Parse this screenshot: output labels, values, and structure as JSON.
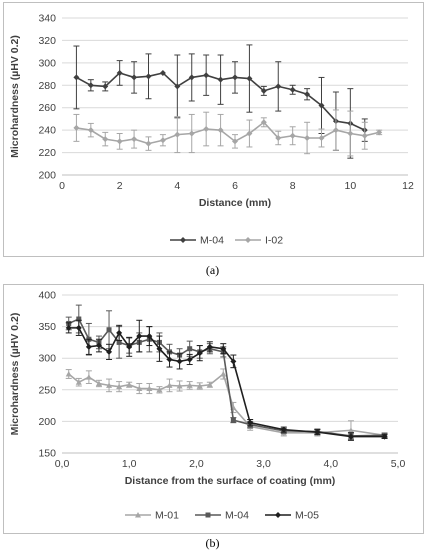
{
  "caption_a": "(a)",
  "caption_b": "(b)",
  "chart_data": [
    {
      "type": "line",
      "title": "",
      "xlabel": "Distance (mm)",
      "ylabel": "Microhardness (µHV 0.2)",
      "xlim": [
        0,
        12
      ],
      "ylim": [
        200,
        340
      ],
      "xticks": [
        "0",
        "2",
        "4",
        "6",
        "8",
        "10",
        "12"
      ],
      "yticks": [
        "200",
        "220",
        "240",
        "260",
        "280",
        "300",
        "320",
        "340"
      ],
      "grid": "horizontal",
      "legend_position": "bottom",
      "series": [
        {
          "name": "M-04",
          "color": "#404040",
          "marker": "diamond",
          "points": [
            {
              "x": 0.5,
              "y": 287,
              "err": 28
            },
            {
              "x": 1.0,
              "y": 280,
              "err": 5
            },
            {
              "x": 1.5,
              "y": 279,
              "err": 4
            },
            {
              "x": 2.0,
              "y": 291,
              "err": 11
            },
            {
              "x": 2.5,
              "y": 287,
              "err": 14
            },
            {
              "x": 3.0,
              "y": 288,
              "err": 20
            },
            {
              "x": 3.5,
              "y": 291,
              "err": 0
            },
            {
              "x": 4.0,
              "y": 279,
              "err": 28
            },
            {
              "x": 4.5,
              "y": 287,
              "err": 21
            },
            {
              "x": 5.0,
              "y": 289,
              "err": 18
            },
            {
              "x": 5.5,
              "y": 285,
              "err": 22
            },
            {
              "x": 6.0,
              "y": 287,
              "err": 14
            },
            {
              "x": 6.5,
              "y": 286,
              "err": 30
            },
            {
              "x": 7.0,
              "y": 275,
              "err": 4
            },
            {
              "x": 7.5,
              "y": 279,
              "err": 22
            },
            {
              "x": 8.0,
              "y": 276,
              "err": 4
            },
            {
              "x": 8.5,
              "y": 272,
              "err": 5
            },
            {
              "x": 9.0,
              "y": 262,
              "err": 25
            },
            {
              "x": 9.5,
              "y": 248,
              "err": 26
            },
            {
              "x": 10.0,
              "y": 246,
              "err": 31
            },
            {
              "x": 10.5,
              "y": 240,
              "err": 10
            }
          ]
        },
        {
          "name": "I-02",
          "color": "#a6a6a6",
          "marker": "diamond",
          "points": [
            {
              "x": 0.5,
              "y": 242,
              "err": 12
            },
            {
              "x": 1.0,
              "y": 240,
              "err": 6
            },
            {
              "x": 1.5,
              "y": 232,
              "err": 6
            },
            {
              "x": 2.0,
              "y": 230,
              "err": 7
            },
            {
              "x": 2.5,
              "y": 232,
              "err": 8
            },
            {
              "x": 3.0,
              "y": 228,
              "err": 6
            },
            {
              "x": 3.5,
              "y": 231,
              "err": 5
            },
            {
              "x": 4.0,
              "y": 236,
              "err": 16
            },
            {
              "x": 4.5,
              "y": 237,
              "err": 17
            },
            {
              "x": 5.0,
              "y": 241,
              "err": 15
            },
            {
              "x": 5.5,
              "y": 240,
              "err": 14
            },
            {
              "x": 6.0,
              "y": 230,
              "err": 6
            },
            {
              "x": 6.5,
              "y": 237,
              "err": 12
            },
            {
              "x": 7.0,
              "y": 247,
              "err": 4
            },
            {
              "x": 7.5,
              "y": 233,
              "err": 6
            },
            {
              "x": 8.0,
              "y": 235,
              "err": 8
            },
            {
              "x": 8.5,
              "y": 233,
              "err": 14
            },
            {
              "x": 9.0,
              "y": 233,
              "err": 8
            },
            {
              "x": 9.5,
              "y": 240,
              "err": 18
            },
            {
              "x": 10.0,
              "y": 237,
              "err": 20
            },
            {
              "x": 10.5,
              "y": 235,
              "err": 12
            },
            {
              "x": 11.0,
              "y": 238,
              "err": 2
            }
          ]
        }
      ]
    },
    {
      "type": "line",
      "title": "",
      "xlabel": "Distance from the surface of coating (mm)",
      "ylabel": "Microhardness (µHV 0.2)",
      "xlim": [
        0,
        5
      ],
      "ylim": [
        150,
        400
      ],
      "xticks": [
        "0,0",
        "1,0",
        "2,0",
        "3,0",
        "4,0",
        "5,0"
      ],
      "yticks": [
        "150",
        "200",
        "250",
        "300",
        "350",
        "400"
      ],
      "grid": "horizontal",
      "legend_position": "bottom",
      "series": [
        {
          "name": "M-01",
          "color": "#a6a6a6",
          "marker": "triangle",
          "points": [
            {
              "x": 0.1,
              "y": 275,
              "err": 7
            },
            {
              "x": 0.25,
              "y": 262,
              "err": 6
            },
            {
              "x": 0.4,
              "y": 270,
              "err": 10
            },
            {
              "x": 0.55,
              "y": 260,
              "err": 5
            },
            {
              "x": 0.7,
              "y": 257,
              "err": 10
            },
            {
              "x": 0.85,
              "y": 255,
              "err": 8
            },
            {
              "x": 1.0,
              "y": 258,
              "err": 4
            },
            {
              "x": 1.15,
              "y": 252,
              "err": 8
            },
            {
              "x": 1.3,
              "y": 252,
              "err": 8
            },
            {
              "x": 1.45,
              "y": 250,
              "err": 5
            },
            {
              "x": 1.6,
              "y": 257,
              "err": 10
            },
            {
              "x": 1.75,
              "y": 256,
              "err": 8
            },
            {
              "x": 1.9,
              "y": 257,
              "err": 6
            },
            {
              "x": 2.05,
              "y": 256,
              "err": 5
            },
            {
              "x": 2.2,
              "y": 258,
              "err": 4
            },
            {
              "x": 2.4,
              "y": 275,
              "err": 8
            },
            {
              "x": 2.55,
              "y": 222,
              "err": 8
            },
            {
              "x": 2.8,
              "y": 192,
              "err": 6
            },
            {
              "x": 3.3,
              "y": 182,
              "err": 5
            },
            {
              "x": 3.8,
              "y": 182,
              "err": 5
            },
            {
              "x": 4.3,
              "y": 186,
              "err": 15
            },
            {
              "x": 4.8,
              "y": 178,
              "err": 4
            }
          ]
        },
        {
          "name": "M-04",
          "color": "#595959",
          "marker": "square",
          "points": [
            {
              "x": 0.1,
              "y": 355,
              "err": 10
            },
            {
              "x": 0.25,
              "y": 362,
              "err": 22
            },
            {
              "x": 0.4,
              "y": 330,
              "err": 25
            },
            {
              "x": 0.55,
              "y": 325,
              "err": 10
            },
            {
              "x": 0.7,
              "y": 345,
              "err": 30
            },
            {
              "x": 0.85,
              "y": 325,
              "err": 25
            },
            {
              "x": 1.0,
              "y": 320,
              "err": 12
            },
            {
              "x": 1.15,
              "y": 325,
              "err": 15
            },
            {
              "x": 1.3,
              "y": 330,
              "err": 20
            },
            {
              "x": 1.45,
              "y": 325,
              "err": 15
            },
            {
              "x": 1.6,
              "y": 310,
              "err": 12
            },
            {
              "x": 1.75,
              "y": 305,
              "err": 10
            },
            {
              "x": 1.9,
              "y": 315,
              "err": 12
            },
            {
              "x": 2.05,
              "y": 310,
              "err": 10
            },
            {
              "x": 2.2,
              "y": 315,
              "err": 8
            },
            {
              "x": 2.4,
              "y": 310,
              "err": 8
            },
            {
              "x": 2.55,
              "y": 202,
              "err": 4
            },
            {
              "x": 2.8,
              "y": 195,
              "err": 5
            },
            {
              "x": 3.3,
              "y": 185,
              "err": 4
            },
            {
              "x": 3.8,
              "y": 184,
              "err": 4
            },
            {
              "x": 4.3,
              "y": 177,
              "err": 5
            },
            {
              "x": 4.8,
              "y": 178,
              "err": 3
            }
          ]
        },
        {
          "name": "M-05",
          "color": "#1f1f1f",
          "marker": "diamond",
          "points": [
            {
              "x": 0.1,
              "y": 348,
              "err": 8
            },
            {
              "x": 0.25,
              "y": 348,
              "err": 12
            },
            {
              "x": 0.4,
              "y": 318,
              "err": 12
            },
            {
              "x": 0.55,
              "y": 320,
              "err": 10
            },
            {
              "x": 0.7,
              "y": 310,
              "err": 12
            },
            {
              "x": 0.85,
              "y": 340,
              "err": 12
            },
            {
              "x": 1.0,
              "y": 318,
              "err": 15
            },
            {
              "x": 1.15,
              "y": 335,
              "err": 25
            },
            {
              "x": 1.3,
              "y": 335,
              "err": 15
            },
            {
              "x": 1.45,
              "y": 315,
              "err": 20
            },
            {
              "x": 1.6,
              "y": 298,
              "err": 12
            },
            {
              "x": 1.75,
              "y": 295,
              "err": 12
            },
            {
              "x": 1.9,
              "y": 298,
              "err": 8
            },
            {
              "x": 2.05,
              "y": 308,
              "err": 12
            },
            {
              "x": 2.2,
              "y": 318,
              "err": 8
            },
            {
              "x": 2.4,
              "y": 315,
              "err": 8
            },
            {
              "x": 2.55,
              "y": 295,
              "err": 10
            },
            {
              "x": 2.8,
              "y": 198,
              "err": 5
            },
            {
              "x": 3.3,
              "y": 187,
              "err": 4
            },
            {
              "x": 3.8,
              "y": 183,
              "err": 4
            },
            {
              "x": 4.3,
              "y": 176,
              "err": 6
            },
            {
              "x": 4.8,
              "y": 176,
              "err": 3
            }
          ]
        }
      ]
    }
  ]
}
